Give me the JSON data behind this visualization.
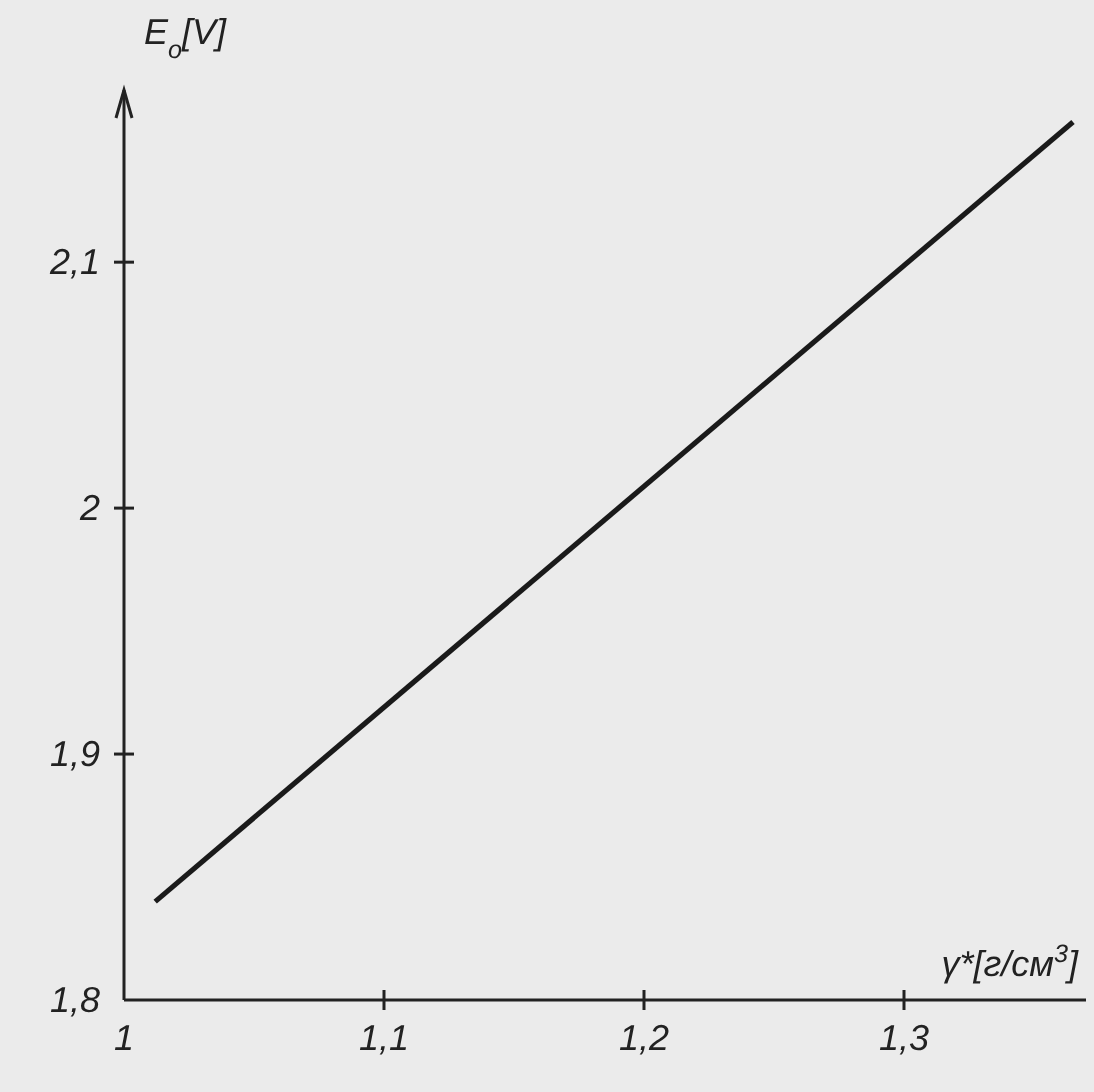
{
  "chart_data": {
    "type": "line",
    "xlabel": "γ*[г/см$^{3}$]",
    "ylabel": "E$_{o}$[V]",
    "x": [
      1.012,
      1.365
    ],
    "series": [
      {
        "color": "#1a1a1a",
        "values": [
          1.84,
          2.157
        ]
      }
    ],
    "xlim": [
      1,
      1.37
    ],
    "ylim": [
      1.8,
      2.17
    ],
    "xticks": [
      1,
      {
        "value": 1.1,
        "label": "1,1"
      },
      {
        "value": 1.2,
        "label": "1,2"
      },
      {
        "value": 1.3,
        "label": "1,3"
      }
    ],
    "yticks": [
      {
        "value": 1.8,
        "label": "1,8"
      },
      {
        "value": 1.9,
        "label": "1,9"
      },
      2,
      {
        "value": 2.1,
        "label": "2,1"
      }
    ],
    "grid": false,
    "marker": "none",
    "line_style": "solid"
  }
}
